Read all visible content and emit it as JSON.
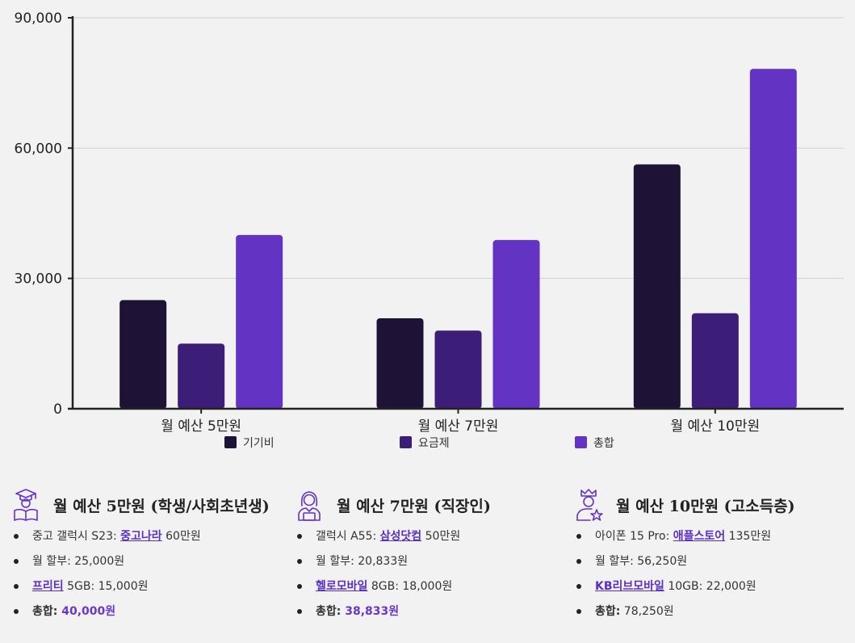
{
  "chart_data": {
    "type": "bar",
    "categories": [
      "월 예산 5만원",
      "월 예산 7만원",
      "월 예산 10만원"
    ],
    "series": [
      {
        "name": "기기비",
        "color": "#1e1236",
        "values": [
          25000,
          20833,
          56250
        ]
      },
      {
        "name": "요금제",
        "color": "#3c1e78",
        "values": [
          15000,
          18000,
          22000
        ]
      },
      {
        "name": "총합",
        "color": "#6333c4",
        "values": [
          40000,
          38833,
          78250
        ]
      }
    ],
    "y_ticks": [
      "90,000",
      "60,000",
      "30,000",
      "0"
    ],
    "y_tick_values": [
      90000,
      60000,
      30000,
      0
    ],
    "ylim": [
      0,
      90000
    ],
    "grid": true,
    "legend_position": "bottom"
  },
  "cards": [
    {
      "icon": "student-reading-icon",
      "title": "월 예산 5만원 (학생/사회초년생)",
      "items": [
        {
          "pre": "중고 갤럭시 S23: ",
          "link": "중고나라",
          "post": " 60만원"
        },
        {
          "pre": "월 할부: 25,000원"
        },
        {
          "link": "프리티",
          "post": " 5GB: 15,000원"
        },
        {
          "bold": "총합:",
          "hl": " 40,000원"
        }
      ]
    },
    {
      "icon": "office-worker-icon",
      "title": "월 예산 7만원 (직장인)",
      "items": [
        {
          "pre": "갤럭시 A55: ",
          "link": "삼성닷컴",
          "post": " 50만원"
        },
        {
          "pre": "월 할부: 20,833원"
        },
        {
          "link": "헬로모바일",
          "post": " 8GB: 18,000원"
        },
        {
          "bold": "총합:",
          "hl": " 38,833원"
        }
      ]
    },
    {
      "icon": "crowned-person-star-icon",
      "title": "월 예산 10만원 (고소득층)",
      "items": [
        {
          "pre": "아이폰 15 Pro: ",
          "link": "애플스토어",
          "post": " 135만원"
        },
        {
          "pre": "월 할부: 56,250원"
        },
        {
          "link": "KB리브모바일",
          "post": " 10GB: 22,000원"
        },
        {
          "bold": "총합:",
          "post": " 78,250원"
        }
      ]
    }
  ]
}
